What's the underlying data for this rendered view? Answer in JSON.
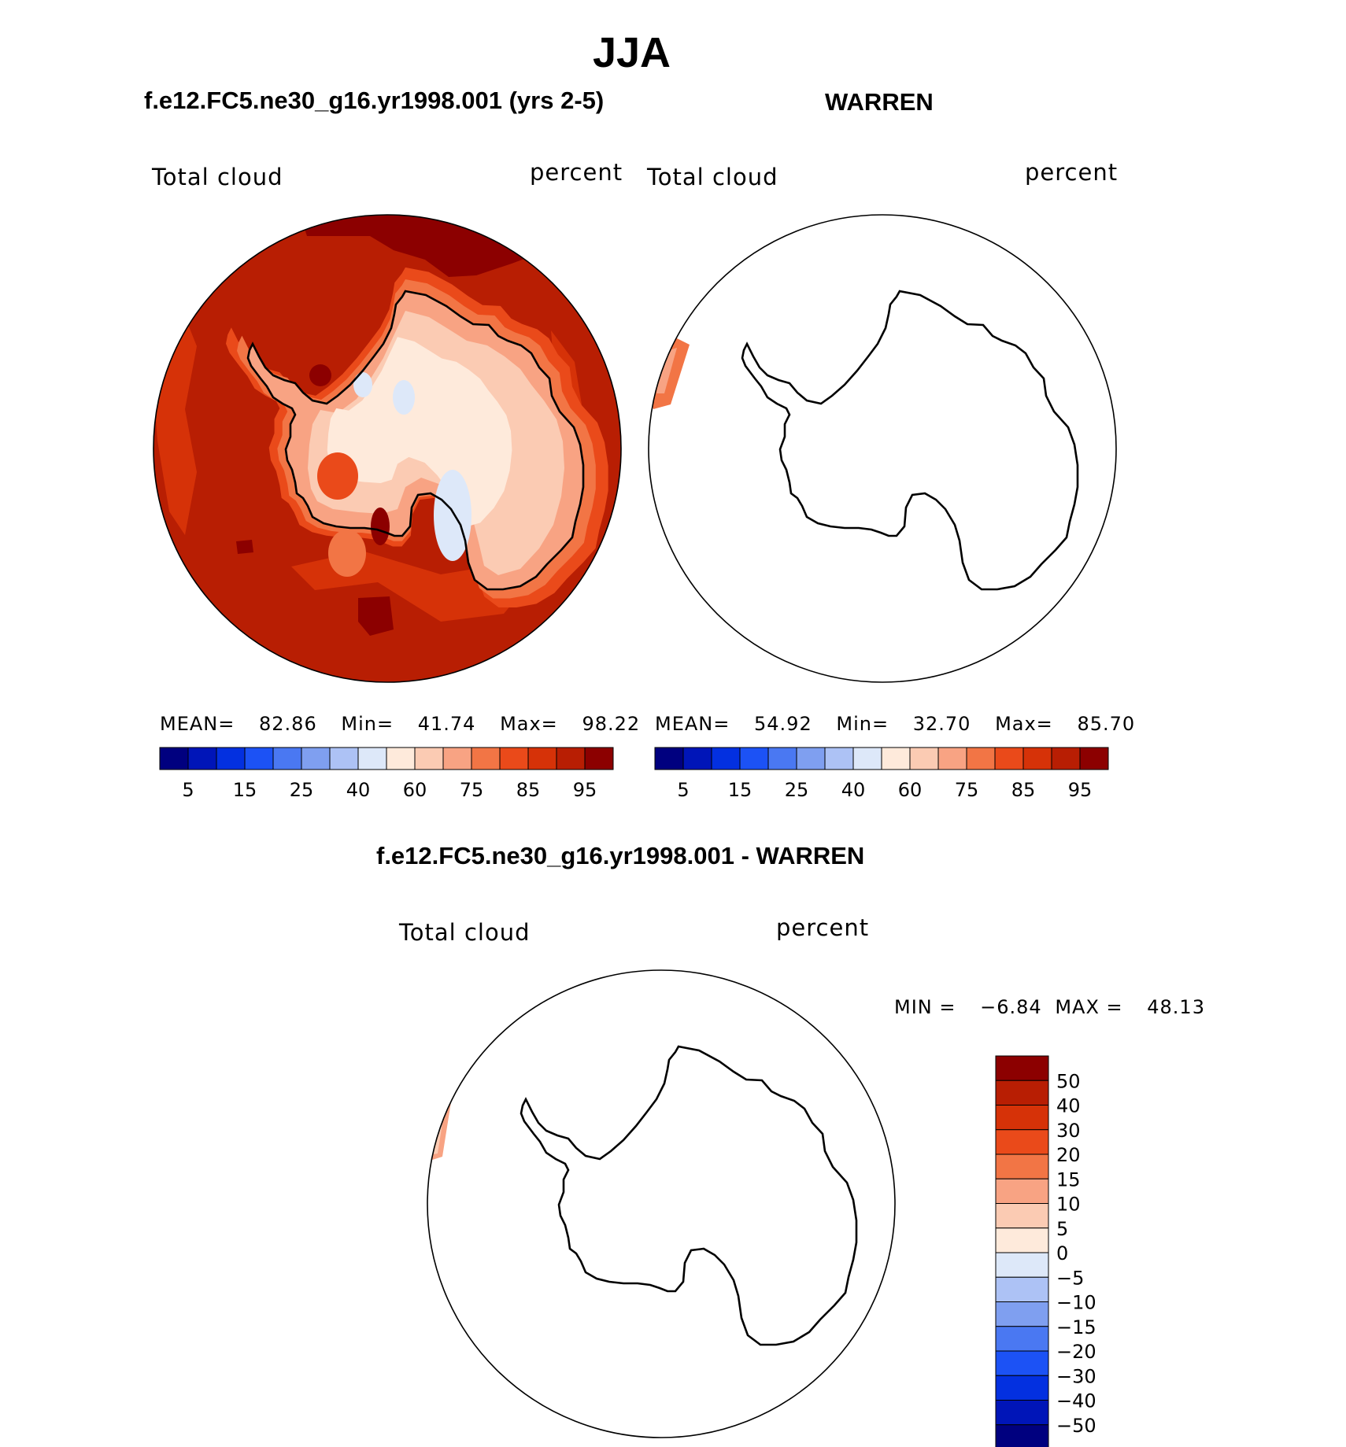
{
  "main_title": "JJA",
  "panels": [
    {
      "case_title": "f.e12.FC5.ne30_g16.yr1998.001 (yrs 2-5)",
      "variable": "Total cloud",
      "units": "percent",
      "mean_label": "MEAN=",
      "mean": "82.86",
      "min_label": "Min=",
      "min": "41.74",
      "max_label": "Max=",
      "max": "98.22"
    },
    {
      "case_title": "WARREN",
      "variable": "Total cloud",
      "units": "percent",
      "mean_label": "MEAN=",
      "mean": "54.92",
      "min_label": "Min=",
      "min": "32.70",
      "max_label": "Max=",
      "max": "85.70"
    },
    {
      "case_title": "f.e12.FC5.ne30_g16.yr1998.001 - WARREN",
      "variable": "Total cloud",
      "units": "percent",
      "min_label": "MIN =",
      "min": "−6.84",
      "max_label": "MAX =",
      "max": "48.13"
    }
  ],
  "colorbar_top": {
    "colors": [
      "#00007f",
      "#0015b8",
      "#0330e0",
      "#1c52f5",
      "#4a78f2",
      "#7f9ff0",
      "#adc2f5",
      "#dde8f9",
      "#feeadb",
      "#fbcbb3",
      "#f8a383",
      "#f27545",
      "#ea4a1a",
      "#d63208",
      "#b81e03",
      "#8c0000"
    ],
    "tick_labels": [
      "5",
      "15",
      "25",
      "40",
      "60",
      "75",
      "85",
      "95"
    ]
  },
  "colorbar_diff": {
    "colors": [
      "#8c0000",
      "#b81e03",
      "#d63208",
      "#ea4a1a",
      "#f27545",
      "#f8a383",
      "#fbcbb3",
      "#feeadb",
      "#dde8f9",
      "#adc2f5",
      "#7f9ff0",
      "#4a78f2",
      "#1c52f5",
      "#0330e0",
      "#0015b8",
      "#00007f"
    ],
    "tick_labels": [
      "50",
      "40",
      "30",
      "20",
      "15",
      "10",
      "5",
      "0",
      "−5",
      "−10",
      "−15",
      "−20",
      "−30",
      "−40",
      "−50"
    ]
  },
  "map_colors": {
    "ocean": "#b81e03",
    "ocean_dark": "#8c0000",
    "ocean_mid": "#d63208",
    "ring1": "#ea4a1a",
    "ring2": "#f27545",
    "ring3": "#f8a383",
    "ring4": "#fbcbb3",
    "interior": "#feeadb",
    "low_blue": "#dde8f9",
    "warren_patch": "#f27545",
    "diff_patch": "#f8a383"
  }
}
